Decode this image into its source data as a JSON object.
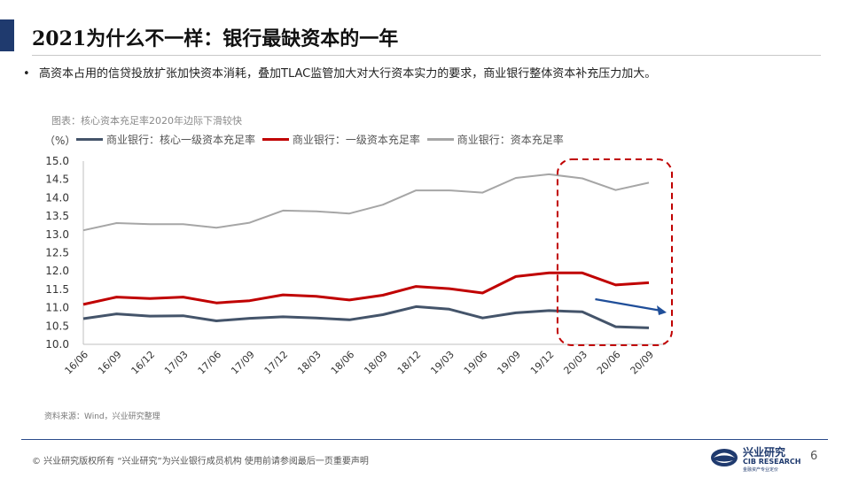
{
  "slide": {
    "title": "2021为什么不一样：银行最缺资本的一年",
    "bullet": "高资本占用的信贷投放扩张加快资本消耗，叠加TLAC监管加大对大行资本实力的要求，商业银行整体资本补充压力加大。",
    "source": "资料来源：Wind，兴业研究整理",
    "footer": "©  兴业研究版权所有    “兴业研究”为兴业银行成员机构    使用前请参阅最后一页重要声明",
    "page_number": "6",
    "logo": {
      "name": "兴业研究",
      "english": "CIB RESEARCH",
      "subtitle": "金融资产专业定价"
    },
    "colors": {
      "accent": "#1f3a6e",
      "core_tier1": "#44546a",
      "tier1": "#c00000",
      "capital": "#a6a6a6",
      "highlight": "#c00000",
      "arrow": "#1f4e99"
    }
  },
  "chart_data": {
    "type": "line",
    "title": "图表：核心资本充足率2020年边际下滑较快",
    "unit": "（%）",
    "xlabel": "",
    "ylabel": "",
    "categories": [
      "16/06",
      "16/09",
      "16/12",
      "17/03",
      "17/06",
      "17/09",
      "17/12",
      "18/03",
      "18/06",
      "18/09",
      "18/12",
      "19/03",
      "19/06",
      "19/09",
      "19/12",
      "20/03",
      "20/06",
      "20/09"
    ],
    "y_ticks": [
      "15.0",
      "14.5",
      "14.0",
      "13.5",
      "13.0",
      "12.5",
      "12.0",
      "11.5",
      "11.0",
      "10.5",
      "10.0"
    ],
    "ylim": [
      10.0,
      15.0
    ],
    "grid": false,
    "legend_position": "top",
    "series": [
      {
        "name": "商业银行：核心一级资本充足率",
        "values": [
          10.7,
          10.83,
          10.77,
          10.78,
          10.64,
          10.71,
          10.75,
          10.72,
          10.67,
          10.81,
          11.03,
          10.96,
          10.72,
          10.86,
          10.92,
          10.89,
          10.48,
          10.45
        ]
      },
      {
        "name": "商业银行：一级资本充足率",
        "values": [
          11.09,
          11.29,
          11.25,
          11.29,
          11.13,
          11.19,
          11.35,
          11.31,
          11.21,
          11.34,
          11.58,
          11.52,
          11.4,
          11.85,
          11.95,
          11.95,
          11.62,
          11.68
        ]
      },
      {
        "name": "商业银行：资本充足率",
        "values": [
          13.11,
          13.31,
          13.28,
          13.28,
          13.18,
          13.32,
          13.65,
          13.63,
          13.57,
          13.81,
          14.2,
          14.2,
          14.14,
          14.54,
          14.64,
          14.53,
          14.21,
          14.41
        ]
      }
    ],
    "annotations": [
      {
        "type": "dashed-rounded-box",
        "from_category": "20/03",
        "to_category": "20/09"
      },
      {
        "type": "arrow",
        "direction": "down-right",
        "near_category": "20/06"
      }
    ]
  }
}
